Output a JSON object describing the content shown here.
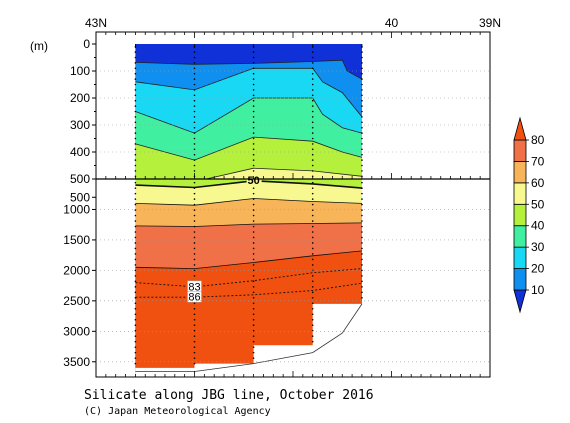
{
  "chart_data": {
    "type": "contour",
    "title": "Silicate along JBG line, October 2016",
    "credit": "(C) Japan Meteorological Agency",
    "y_unit": "(m)",
    "x_ticks": [
      {
        "lat": 43,
        "label": "43N"
      },
      {
        "lat": 40,
        "label": "40"
      },
      {
        "lat": 39,
        "label": "39N"
      }
    ],
    "x_range": [
      43,
      39
    ],
    "upper_panel": {
      "depth_range": [
        0,
        500
      ],
      "ticks": [
        0,
        100,
        200,
        300,
        400,
        500
      ]
    },
    "lower_panel": {
      "depth_range": [
        500,
        3750
      ],
      "ticks": [
        1000,
        1500,
        2000,
        2500,
        3000,
        3500
      ],
      "extra_tick_labels": [
        {
          "depth": 800,
          "label": "500"
        }
      ]
    },
    "station_lats": [
      42.6,
      42.0,
      41.4,
      40.8,
      40.3
    ],
    "section_end_lat": 40.3,
    "colorbar": {
      "levels": [
        10,
        20,
        30,
        40,
        50,
        60,
        70,
        80
      ],
      "colors": [
        "#1030d8",
        "#0f8ff0",
        "#18d8f4",
        "#40f0a0",
        "#b4f03c",
        "#f8f890",
        "#f8b458",
        "#f07048",
        "#f05010"
      ]
    },
    "isolines_upper": [
      {
        "level": 10,
        "points": [
          [
            42.6,
            68
          ],
          [
            42.0,
            75
          ],
          [
            41.4,
            72
          ],
          [
            40.8,
            65
          ],
          [
            40.5,
            60
          ],
          [
            40.45,
            100
          ],
          [
            40.3,
            130
          ]
        ]
      },
      {
        "level": 20,
        "points": [
          [
            42.6,
            140
          ],
          [
            42.0,
            170
          ],
          [
            41.4,
            90
          ],
          [
            40.8,
            90
          ],
          [
            40.7,
            140
          ],
          [
            40.5,
            180
          ],
          [
            40.3,
            270
          ]
        ]
      },
      {
        "level": 30,
        "points": [
          [
            42.6,
            250
          ],
          [
            42.0,
            330
          ],
          [
            41.4,
            200
          ],
          [
            40.8,
            200
          ],
          [
            40.7,
            260
          ],
          [
            40.5,
            310
          ],
          [
            40.3,
            330
          ]
        ]
      },
      {
        "level": 40,
        "points": [
          [
            42.6,
            370
          ],
          [
            42.0,
            430
          ],
          [
            41.4,
            345
          ],
          [
            40.8,
            360
          ],
          [
            40.5,
            400
          ],
          [
            40.3,
            420
          ]
        ]
      },
      {
        "level": 50,
        "points": [
          [
            42.6,
            500
          ],
          [
            42.0,
            510
          ],
          [
            41.4,
            460
          ],
          [
            40.8,
            470
          ],
          [
            40.3,
            490
          ]
        ]
      }
    ],
    "isolines_lower": [
      {
        "level": 50,
        "labeled": true,
        "label": "50",
        "points": [
          [
            42.6,
            600
          ],
          [
            42.0,
            640
          ],
          [
            41.4,
            530
          ],
          [
            40.8,
            580
          ],
          [
            40.3,
            650
          ]
        ]
      },
      {
        "level": 60,
        "points": [
          [
            42.6,
            900
          ],
          [
            42.0,
            930
          ],
          [
            41.4,
            820
          ],
          [
            40.8,
            870
          ],
          [
            40.3,
            900
          ]
        ]
      },
      {
        "level": 70,
        "points": [
          [
            42.6,
            1270
          ],
          [
            42.0,
            1280
          ],
          [
            41.4,
            1240
          ],
          [
            40.8,
            1230
          ],
          [
            40.3,
            1220
          ]
        ]
      },
      {
        "level": 80,
        "points": [
          [
            42.6,
            1950
          ],
          [
            42.0,
            1970
          ],
          [
            41.4,
            1870
          ],
          [
            40.8,
            1760
          ],
          [
            40.3,
            1680
          ]
        ]
      }
    ],
    "dashed_isolines": [
      {
        "level": 83,
        "label": "83",
        "points": [
          [
            42.6,
            2200
          ],
          [
            42.0,
            2270
          ],
          [
            41.4,
            2170
          ],
          [
            40.8,
            2040
          ],
          [
            40.3,
            1970
          ]
        ]
      },
      {
        "level": 86,
        "label": "86",
        "points": [
          [
            42.6,
            2440
          ],
          [
            42.0,
            2440
          ],
          [
            41.4,
            2400
          ],
          [
            40.8,
            2330
          ],
          [
            40.3,
            2210
          ]
        ]
      }
    ],
    "data_bottom": [
      [
        42.6,
        3600
      ],
      [
        42.0,
        3600
      ],
      [
        42.0,
        3530
      ],
      [
        41.4,
        3530
      ],
      [
        41.4,
        3230
      ],
      [
        40.8,
        3230
      ],
      [
        40.8,
        2550
      ],
      [
        40.3,
        2550
      ]
    ],
    "bottom_topography": [
      [
        42.6,
        3660
      ],
      [
        42.0,
        3660
      ],
      [
        41.4,
        3530
      ],
      [
        40.8,
        3350
      ],
      [
        40.5,
        3030
      ],
      [
        40.3,
        2550
      ]
    ],
    "station_depths": [
      [
        42.6,
        3600
      ],
      [
        42.0,
        3620
      ],
      [
        41.4,
        3530
      ],
      [
        40.8,
        3260
      ],
      [
        40.3,
        2500
      ]
    ]
  }
}
